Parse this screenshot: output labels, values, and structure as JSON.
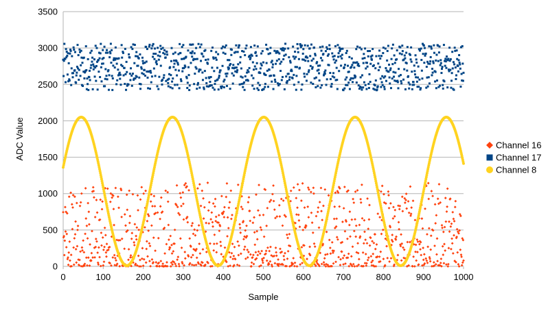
{
  "chart_data": {
    "type": "scatter",
    "title": "",
    "xlabel": "Sample",
    "ylabel": "ADC Value",
    "xlim": [
      0,
      1000
    ],
    "ylim": [
      0,
      3500
    ],
    "x_ticks": [
      0,
      100,
      200,
      300,
      400,
      500,
      600,
      700,
      800,
      900,
      1000
    ],
    "y_ticks": [
      0,
      500,
      1000,
      1500,
      2000,
      2500,
      3000,
      3500
    ],
    "grid": "horizontal",
    "legend_position": "right",
    "series": [
      {
        "name": "Channel 16",
        "marker": "diamond",
        "color": "#ff420e",
        "generator": "random",
        "x_range": [
          0,
          1000
        ],
        "x_step": 1,
        "y_range": [
          0,
          1150
        ],
        "distribution": "skewed-low",
        "description_values": {
          "min": 0,
          "max": 1150
        }
      },
      {
        "name": "Channel 17",
        "marker": "square",
        "color": "#004586",
        "generator": "random",
        "x_range": [
          0,
          1000
        ],
        "x_step": 1,
        "y_range": [
          2420,
          3060
        ],
        "distribution": "uniform"
      },
      {
        "name": "Channel 8",
        "marker": "circle",
        "color": "#ffd320",
        "generator": "sine",
        "x_range": [
          0,
          1000
        ],
        "x_step": 1,
        "amplitude": 1020,
        "offset": 1030,
        "period": 228,
        "first_peak_x": 45
      }
    ]
  }
}
